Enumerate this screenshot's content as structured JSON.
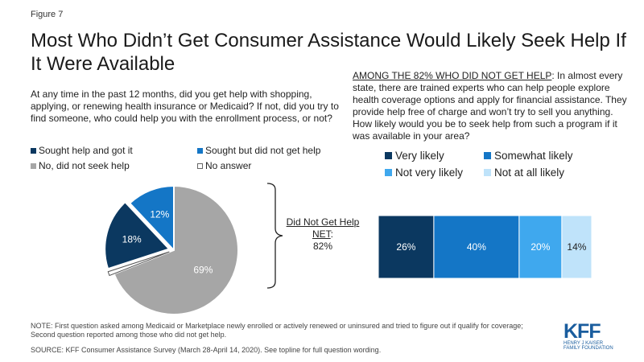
{
  "figure_label": "Figure 7",
  "title": "Most Who Didn’t Get Consumer Assistance Would Likely Seek Help If It Were Available",
  "left_question": "At any time in the past 12 months, did you get help with shopping, applying, or renewing health insurance or Medicaid? If not, did you try to find someone, who could help you with the enrollment process, or not?",
  "right_question_lead": "AMONG THE 82% WHO DID NOT GET HELP",
  "right_question_body": ": In almost every state, there are trained experts who can help people explore health coverage options and apply for financial assistance. They provide help free of charge and won’t try to sell you anything. How likely would you be to seek help from such a program if it was available in your area?",
  "net_label_line1": "Did Not Get Help",
  "net_label_line2": "NET",
  "net_label_colon": ":",
  "net_value": "82%",
  "note": "NOTE: First question asked among Medicaid or Marketplace newly enrolled or actively renewed or uninsured and tried to figure out if qualify for coverage; Second question reported among those who did not get help.",
  "source": "SOURCE: KFF Consumer Assistance Survey (March 28-April 14, 2020). See topline for full question wording.",
  "logo": {
    "word": "KFF",
    "sub_line1": "HENRY J KAISER",
    "sub_line2": "FAMILY FOUNDATION"
  },
  "colors": {
    "dark_navy": "#0b3860",
    "medium_blue": "#1476c6",
    "gray": "#a6a6a6",
    "white": "#ffffff",
    "light_blue": "#3fa8ee",
    "pale_blue": "#bfe3fa",
    "kff_blue": "#1a5d9e"
  },
  "chart_data": [
    {
      "type": "pie",
      "slices": [
        {
          "name": "Sought help and got it",
          "value": 18,
          "label": "18%",
          "color": "#0b3860",
          "label_color": "#ffffff",
          "exploded": true
        },
        {
          "name": "Sought but did not get help",
          "value": 12,
          "label": "12%",
          "color": "#1476c6",
          "label_color": "#ffffff",
          "exploded": false
        },
        {
          "name": "No, did not seek help",
          "value": 69,
          "label": "69%",
          "color": "#a6a6a6",
          "label_color": "#ffffff",
          "exploded": false
        },
        {
          "name": "No answer",
          "value": 1,
          "label": "",
          "color": "#ffffff",
          "label_color": "#222222",
          "exploded": true
        }
      ],
      "legend": [
        {
          "label": "Sought help and got it",
          "color": "#0b3860"
        },
        {
          "label": "Sought but did not get help",
          "color": "#1476c6"
        },
        {
          "label": "No, did not seek help",
          "color": "#a6a6a6"
        },
        {
          "label": "No answer",
          "color": "#ffffff"
        }
      ]
    },
    {
      "type": "bar",
      "orientation": "horizontal-stacked",
      "categories": [
        "Did Not Get Help NET: 82%"
      ],
      "series": [
        {
          "name": "Very likely",
          "values": [
            26
          ],
          "label": "26%",
          "color": "#0b3860",
          "label_color": "#ffffff"
        },
        {
          "name": "Somewhat likely",
          "values": [
            40
          ],
          "label": "40%",
          "color": "#1476c6",
          "label_color": "#ffffff"
        },
        {
          "name": "Not very likely",
          "values": [
            20
          ],
          "label": "20%",
          "color": "#3fa8ee",
          "label_color": "#ffffff"
        },
        {
          "name": "Not at all likely",
          "values": [
            14
          ],
          "label": "14%",
          "color": "#bfe3fa",
          "label_color": "#222222"
        }
      ],
      "xlim": [
        0,
        100
      ]
    }
  ]
}
